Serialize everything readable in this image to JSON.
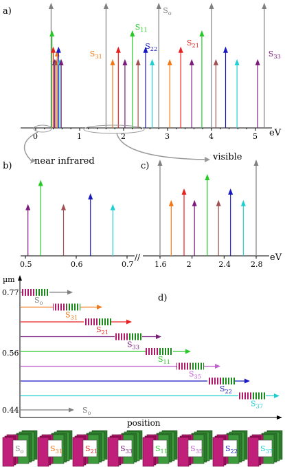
{
  "colors": {
    "S0": "#808080",
    "S31": "#f07818",
    "S21": "#e82020",
    "S33": "#7a1a7a",
    "S11": "#28c828",
    "S35": "#c060d0",
    "S22": "#1818c0",
    "S37": "#20d0d0",
    "S_brown": "#a05050",
    "axis": "#000000",
    "callout": "#999999"
  },
  "panel_a": {
    "label": "a)",
    "unit": "eV",
    "ticks": [
      "0",
      "1",
      "2",
      "3",
      "4",
      "5"
    ],
    "ticks_values": [
      0,
      1,
      2,
      3,
      4,
      5
    ],
    "series_labels": [
      {
        "main": "S",
        "sub": "o",
        "color_key": "S0",
        "x": 2.8
      },
      {
        "main": "S",
        "sub": "11",
        "color_key": "S11",
        "x": 2.15
      },
      {
        "main": "S",
        "sub": "22",
        "color_key": "S22",
        "x": 2.55
      },
      {
        "main": "S",
        "sub": "21",
        "color_key": "S21",
        "x": 3.5
      },
      {
        "main": "S",
        "sub": "31",
        "color_key": "S31",
        "x": 1.2
      },
      {
        "main": "S",
        "sub": "33",
        "color_key": "S33",
        "x": 5.2
      }
    ],
    "lines": [
      {
        "x": 0.35,
        "h": 1.0,
        "c": "S0"
      },
      {
        "x": 0.37,
        "h": 0.78,
        "c": "S11"
      },
      {
        "x": 0.4,
        "h": 0.65,
        "c": "S21"
      },
      {
        "x": 0.43,
        "h": 0.55,
        "c": "S33"
      },
      {
        "x": 0.46,
        "h": 0.55,
        "c": "S_brown"
      },
      {
        "x": 0.49,
        "h": 0.62,
        "c": "S31"
      },
      {
        "x": 0.52,
        "h": 0.65,
        "c": "S22"
      },
      {
        "x": 0.55,
        "h": 0.55,
        "c": "S37"
      },
      {
        "x": 0.58,
        "h": 0.55,
        "c": "S33"
      },
      {
        "x": 1.6,
        "h": 1.0,
        "c": "S0"
      },
      {
        "x": 1.75,
        "h": 0.55,
        "c": "S31"
      },
      {
        "x": 1.88,
        "h": 0.65,
        "c": "S21"
      },
      {
        "x": 2.03,
        "h": 0.55,
        "c": "S33"
      },
      {
        "x": 2.2,
        "h": 0.78,
        "c": "S11"
      },
      {
        "x": 2.33,
        "h": 0.55,
        "c": "S_brown"
      },
      {
        "x": 2.5,
        "h": 0.65,
        "c": "S22"
      },
      {
        "x": 2.65,
        "h": 0.55,
        "c": "S37"
      },
      {
        "x": 2.8,
        "h": 1.0,
        "c": "S0"
      },
      {
        "x": 3.05,
        "h": 0.55,
        "c": "S31"
      },
      {
        "x": 3.3,
        "h": 0.65,
        "c": "S21"
      },
      {
        "x": 3.55,
        "h": 0.55,
        "c": "S33"
      },
      {
        "x": 3.78,
        "h": 0.78,
        "c": "S11"
      },
      {
        "x": 4.0,
        "h": 1.0,
        "c": "S0"
      },
      {
        "x": 4.1,
        "h": 0.55,
        "c": "S_brown"
      },
      {
        "x": 4.32,
        "h": 0.65,
        "c": "S22"
      },
      {
        "x": 4.58,
        "h": 0.55,
        "c": "S37"
      },
      {
        "x": 5.05,
        "h": 0.55,
        "c": "S33"
      },
      {
        "x": 5.2,
        "h": 1.0,
        "c": "S0"
      }
    ],
    "callout_near": "near infrared",
    "callout_visible": "visible"
  },
  "panel_b": {
    "label": "b)",
    "ticks": [
      "0.5",
      "0.6",
      "0.7"
    ],
    "ticks_values": [
      0.5,
      0.6,
      0.7
    ],
    "lines": [
      {
        "x": 0.505,
        "h": 0.58,
        "c": "S33"
      },
      {
        "x": 0.53,
        "h": 0.85,
        "c": "S11"
      },
      {
        "x": 0.575,
        "h": 0.58,
        "c": "S_brown"
      },
      {
        "x": 0.628,
        "h": 0.7,
        "c": "S22"
      },
      {
        "x": 0.672,
        "h": 0.58,
        "c": "S37"
      }
    ]
  },
  "panel_c": {
    "label": "c)",
    "unit": "eV",
    "ticks": [
      "1.6",
      "2",
      "2.4",
      "2.8"
    ],
    "ticks_values": [
      1.6,
      2.0,
      2.4,
      2.8
    ],
    "lines": [
      {
        "x": 1.6,
        "h": 1.0,
        "c": "S0"
      },
      {
        "x": 1.74,
        "h": 0.58,
        "c": "S31"
      },
      {
        "x": 1.9,
        "h": 0.7,
        "c": "S21"
      },
      {
        "x": 2.03,
        "h": 0.58,
        "c": "S33"
      },
      {
        "x": 2.19,
        "h": 0.85,
        "c": "S11"
      },
      {
        "x": 2.33,
        "h": 0.58,
        "c": "S_brown"
      },
      {
        "x": 2.48,
        "h": 0.7,
        "c": "S22"
      },
      {
        "x": 2.64,
        "h": 0.58,
        "c": "S37"
      },
      {
        "x": 2.8,
        "h": 1.0,
        "c": "S0"
      }
    ]
  },
  "panel_d": {
    "label": "d)",
    "ylabel": "µm",
    "xlabel": "position",
    "yticks": [
      "0.77",
      "0.56",
      "0.44"
    ],
    "pulses": [
      {
        "main": "S",
        "sub": "o",
        "c": "S0"
      },
      {
        "main": "S",
        "sub": "31",
        "c": "S31"
      },
      {
        "main": "S",
        "sub": "21",
        "c": "S21"
      },
      {
        "main": "S",
        "sub": "33",
        "c": "S33"
      },
      {
        "main": "S",
        "sub": "11",
        "c": "S11"
      },
      {
        "main": "S",
        "sub": "35",
        "c": "S35"
      },
      {
        "main": "S",
        "sub": "22",
        "c": "S22"
      },
      {
        "main": "S",
        "sub": "37",
        "c": "S37"
      }
    ],
    "bottom_arrow": {
      "main": "S",
      "sub": "o",
      "c": "S0"
    }
  },
  "blocks": [
    {
      "main": "S",
      "sub": "o",
      "c": "S0"
    },
    {
      "main": "S",
      "sub": "31",
      "c": "S31"
    },
    {
      "main": "S",
      "sub": "21",
      "c": "S21"
    },
    {
      "main": "S",
      "sub": "33",
      "c": "S33"
    },
    {
      "main": "S",
      "sub": "11",
      "c": "S11"
    },
    {
      "main": "S",
      "sub": "35",
      "c": "S35"
    },
    {
      "main": "S",
      "sub": "22",
      "c": "S22"
    },
    {
      "main": "S",
      "sub": "37",
      "c": "S37"
    }
  ]
}
